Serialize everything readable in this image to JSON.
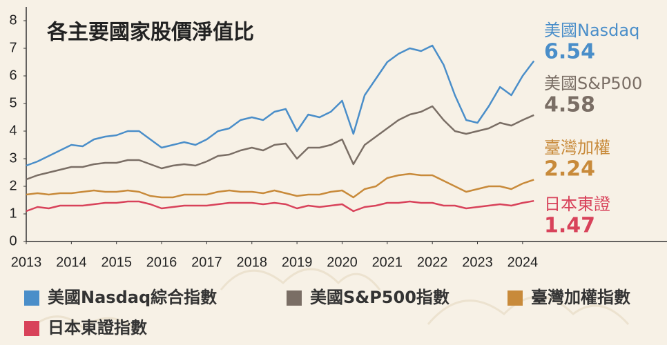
{
  "chart_data": {
    "type": "line",
    "title": "各主要國家股價淨值比",
    "x": [
      2013,
      2013.25,
      2013.5,
      2013.75,
      2014,
      2014.25,
      2014.5,
      2014.75,
      2015,
      2015.25,
      2015.5,
      2015.75,
      2016,
      2016.25,
      2016.5,
      2016.75,
      2017,
      2017.25,
      2017.5,
      2017.75,
      2018,
      2018.25,
      2018.5,
      2018.75,
      2019,
      2019.25,
      2019.5,
      2019.75,
      2020,
      2020.25,
      2020.5,
      2020.75,
      2021,
      2021.25,
      2021.5,
      2021.75,
      2022,
      2022.25,
      2022.5,
      2022.75,
      2023,
      2023.25,
      2023.5,
      2023.75,
      2024,
      2024.25
    ],
    "xlim": [
      2013,
      2027.2
    ],
    "xticks": [
      2013,
      2014,
      2015,
      2016,
      2017,
      2018,
      2019,
      2020,
      2021,
      2022,
      2023,
      2024
    ],
    "ylim": [
      0,
      8
    ],
    "yticks": [
      0,
      1,
      2,
      3,
      4,
      5,
      6,
      7,
      8
    ],
    "series": [
      {
        "name": "美國Nasdaq綜合指數",
        "label": "美國Nasdaq",
        "color": "#4a8ec9",
        "values": [
          2.75,
          2.9,
          3.1,
          3.3,
          3.5,
          3.45,
          3.7,
          3.8,
          3.85,
          4.0,
          4.0,
          3.7,
          3.4,
          3.5,
          3.6,
          3.5,
          3.7,
          4.0,
          4.1,
          4.4,
          4.5,
          4.4,
          4.7,
          4.8,
          4.0,
          4.6,
          4.5,
          4.7,
          5.1,
          3.9,
          5.3,
          5.9,
          6.5,
          6.8,
          7.0,
          6.9,
          7.1,
          6.4,
          5.3,
          4.4,
          4.3,
          4.9,
          5.6,
          5.3,
          6.0,
          6.54
        ]
      },
      {
        "name": "美國S&P500指數",
        "label": "美國S&P500",
        "color": "#7a6e65",
        "values": [
          2.25,
          2.4,
          2.5,
          2.6,
          2.7,
          2.7,
          2.8,
          2.85,
          2.85,
          2.95,
          2.95,
          2.8,
          2.65,
          2.75,
          2.8,
          2.75,
          2.9,
          3.1,
          3.15,
          3.3,
          3.4,
          3.3,
          3.5,
          3.55,
          3.0,
          3.4,
          3.4,
          3.5,
          3.7,
          2.8,
          3.5,
          3.8,
          4.1,
          4.4,
          4.6,
          4.7,
          4.9,
          4.4,
          4.0,
          3.9,
          4.0,
          4.1,
          4.3,
          4.2,
          4.4,
          4.58
        ]
      },
      {
        "name": "臺灣加權指數",
        "label": "臺灣加權",
        "color": "#c88a3a",
        "values": [
          1.7,
          1.75,
          1.7,
          1.75,
          1.75,
          1.8,
          1.85,
          1.8,
          1.8,
          1.85,
          1.8,
          1.65,
          1.6,
          1.6,
          1.7,
          1.7,
          1.7,
          1.8,
          1.85,
          1.8,
          1.8,
          1.75,
          1.85,
          1.75,
          1.65,
          1.7,
          1.7,
          1.8,
          1.85,
          1.6,
          1.9,
          2.0,
          2.3,
          2.4,
          2.45,
          2.4,
          2.4,
          2.2,
          2.0,
          1.8,
          1.9,
          2.0,
          2.0,
          1.9,
          2.1,
          2.24
        ]
      },
      {
        "name": "日本東證指數",
        "label": "日本東證",
        "color": "#d8425a",
        "values": [
          1.1,
          1.25,
          1.2,
          1.3,
          1.3,
          1.3,
          1.35,
          1.4,
          1.4,
          1.45,
          1.45,
          1.35,
          1.2,
          1.25,
          1.3,
          1.3,
          1.3,
          1.35,
          1.4,
          1.4,
          1.4,
          1.35,
          1.4,
          1.35,
          1.2,
          1.3,
          1.25,
          1.3,
          1.35,
          1.1,
          1.25,
          1.3,
          1.4,
          1.4,
          1.45,
          1.4,
          1.4,
          1.3,
          1.3,
          1.2,
          1.25,
          1.3,
          1.35,
          1.3,
          1.4,
          1.47
        ]
      }
    ]
  }
}
